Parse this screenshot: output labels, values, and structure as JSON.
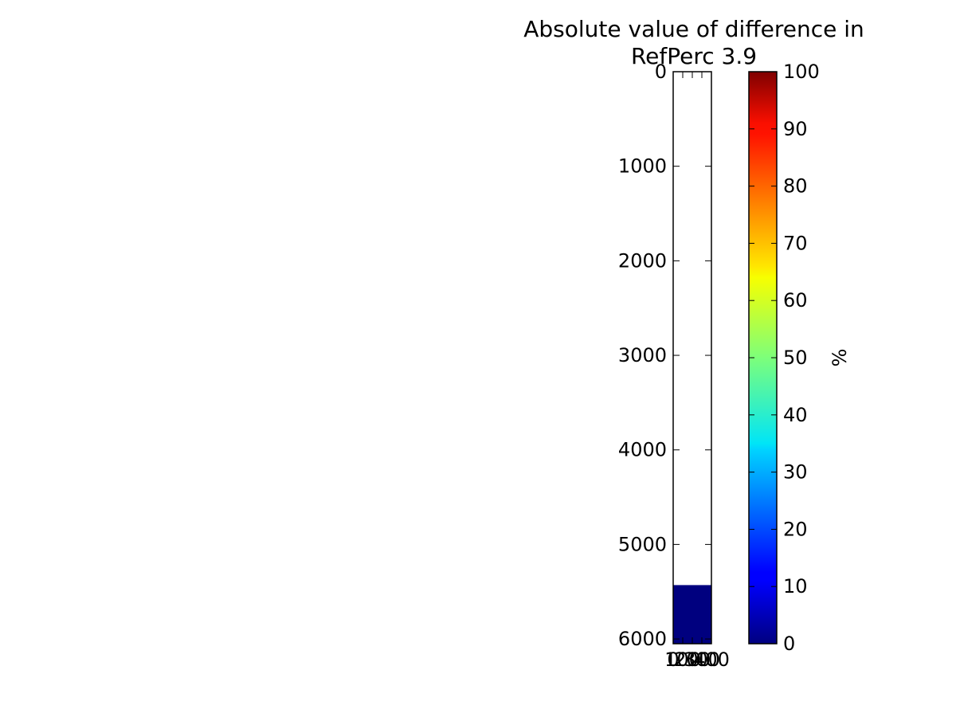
{
  "chart_data": {
    "type": "heatmap",
    "title": "Absolute value of difference in\nRefPerc 3.9",
    "title_lines": [
      "Absolute value of difference in",
      "RefPerc 3.9"
    ],
    "y_axis": {
      "inverted": true,
      "range": [
        0,
        6050
      ],
      "tick_values": [
        0,
        1000,
        2000,
        3000,
        4000,
        5000,
        6000
      ],
      "tick_labels": [
        "0",
        "1000",
        "2000",
        "3000",
        "4000",
        "5000",
        "6000"
      ]
    },
    "x_axis": {
      "range": [
        0,
        400
      ],
      "tick_values": [
        0,
        100,
        200,
        300,
        400
      ],
      "tick_labels": [
        "0",
        "100",
        "200",
        "300",
        "400"
      ]
    },
    "data_region": {
      "y_range": [
        5430,
        6050
      ],
      "x_range": [
        0,
        400
      ],
      "value": 0,
      "description_color": "#00007f"
    },
    "colorbar": {
      "label": "%",
      "range": [
        0,
        100
      ],
      "tick_values": [
        0,
        10,
        20,
        30,
        40,
        50,
        60,
        70,
        80,
        90,
        100
      ],
      "tick_labels": [
        "0",
        "10",
        "20",
        "30",
        "40",
        "50",
        "60",
        "70",
        "80",
        "90",
        "100"
      ],
      "colormap": "jet",
      "colormap_stops": [
        {
          "pos": 0.0,
          "color": "#00007f"
        },
        {
          "pos": 0.11,
          "color": "#0000ff"
        },
        {
          "pos": 0.125,
          "color": "#0000ff"
        },
        {
          "pos": 0.34,
          "color": "#00d4ff"
        },
        {
          "pos": 0.35,
          "color": "#00e5f7"
        },
        {
          "pos": 0.5,
          "color": "#7dff7a"
        },
        {
          "pos": 0.64,
          "color": "#f7ff00"
        },
        {
          "pos": 0.66,
          "color": "#ffe600"
        },
        {
          "pos": 0.89,
          "color": "#ff1300"
        },
        {
          "pos": 0.91,
          "color": "#fa0f00"
        },
        {
          "pos": 1.0,
          "color": "#7f0000"
        }
      ]
    },
    "grid": false
  }
}
